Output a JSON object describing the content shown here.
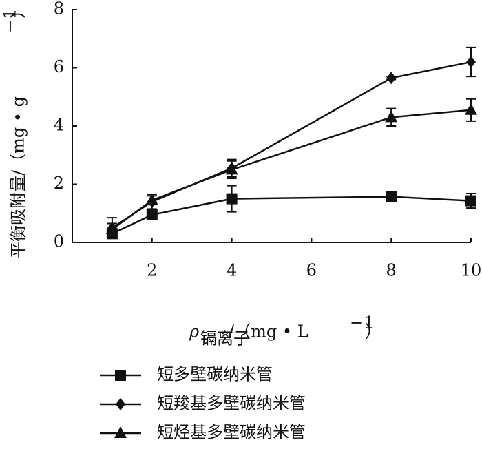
{
  "chart_data": {
    "type": "line",
    "x_label": {
      "symbol": "ρ",
      "subscript": "镉离子",
      "unit": "/（mg • L",
      "exponent": "−1",
      "close": "）"
    },
    "y_label": {
      "text": "平衡吸附量/（mg • g",
      "exponent": "−1",
      "close": "）"
    },
    "x": [
      1,
      2,
      4,
      8,
      10
    ],
    "xlim": [
      0,
      10
    ],
    "xticks": [
      2,
      4,
      6,
      8,
      10
    ],
    "ylim": [
      0,
      8
    ],
    "yticks": [
      0,
      2,
      4,
      6,
      8
    ],
    "series": [
      {
        "name": "短多壁碳纳米管",
        "marker": "square",
        "color": "#111111",
        "values": [
          0.3,
          0.95,
          1.5,
          1.57,
          1.43
        ],
        "errors": [
          0.12,
          0.1,
          0.45,
          0.08,
          0.25
        ]
      },
      {
        "name": "短羧基多壁碳纳米管",
        "marker": "diamond",
        "color": "#111111",
        "values": [
          0.5,
          1.4,
          2.55,
          5.65,
          6.2
        ],
        "errors": [
          0.35,
          0.25,
          0.3,
          0.05,
          0.5
        ]
      },
      {
        "name": "短烃基多壁碳纳米管",
        "marker": "triangle",
        "color": "#111111",
        "values": [
          0.45,
          1.45,
          2.5,
          4.3,
          4.55
        ],
        "errors": [
          0.2,
          0.15,
          0.3,
          0.3,
          0.38
        ]
      }
    ]
  }
}
